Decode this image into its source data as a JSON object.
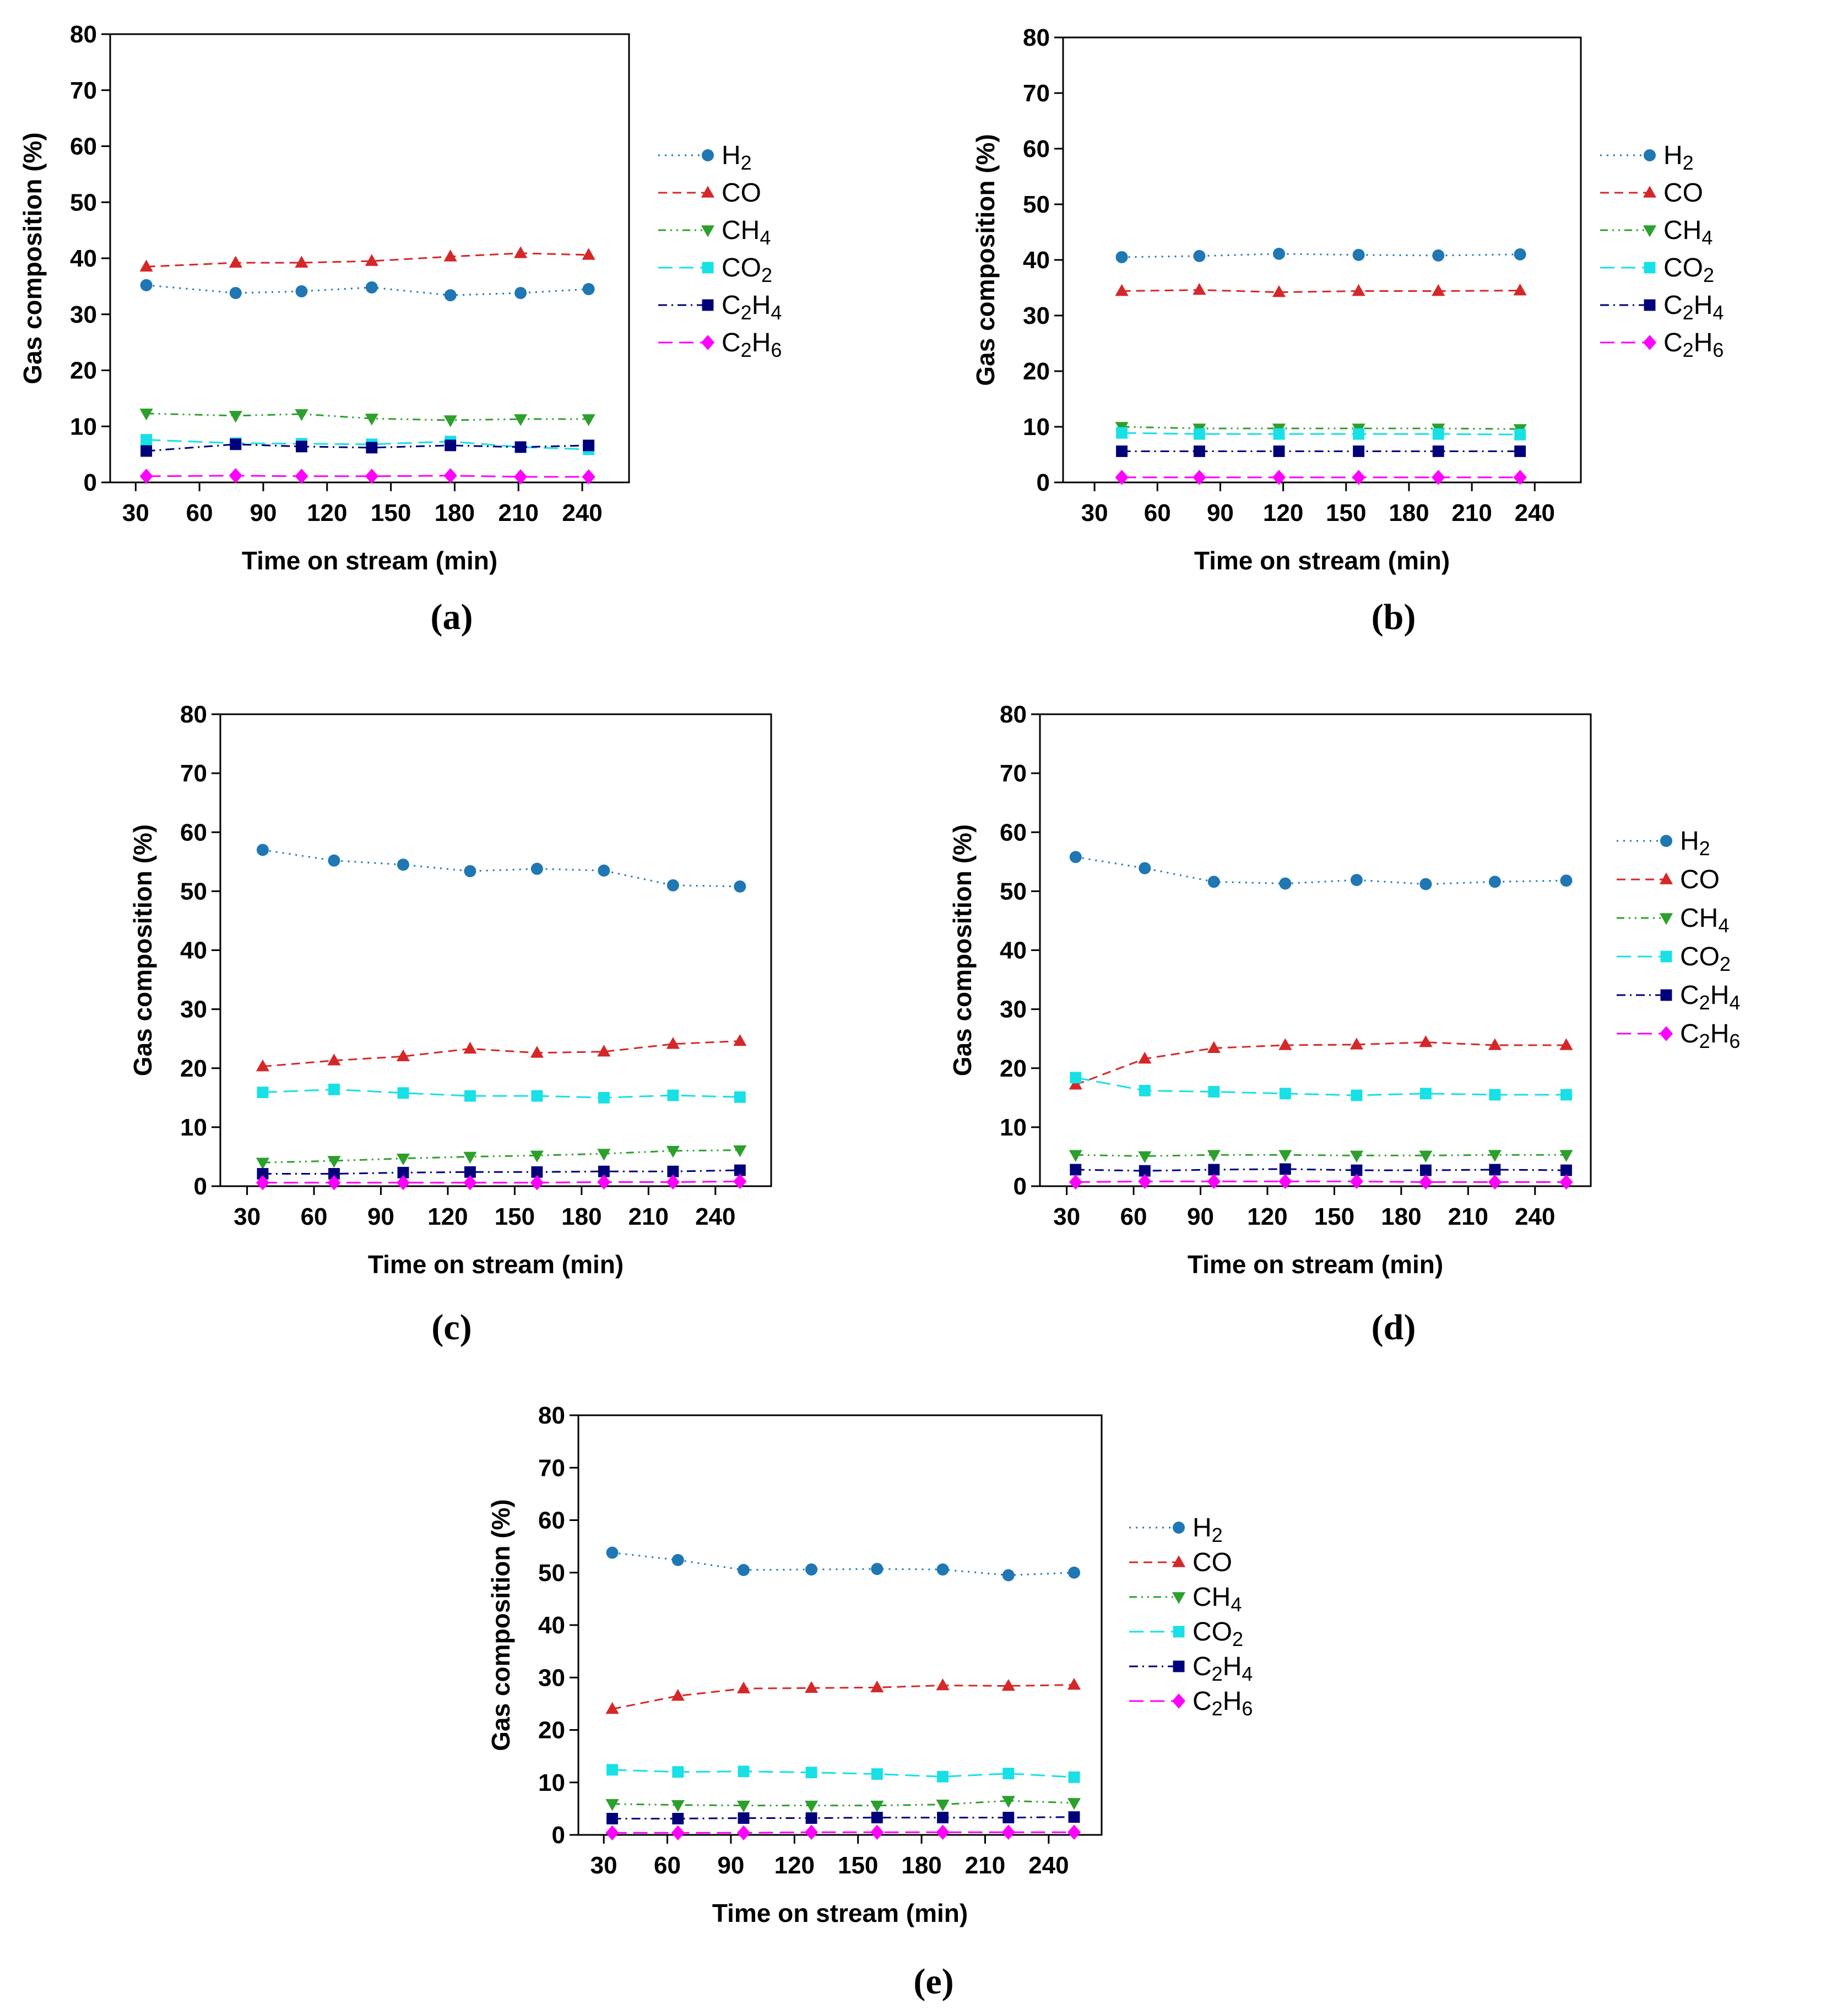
{
  "figure": {
    "ylabel": "Gas composition (%)",
    "xlabel": "Time on stream (min)"
  },
  "series_styles": [
    {
      "key": "H2",
      "base": "H",
      "sub": "2",
      "color": "#1f77b4",
      "marker": "circle",
      "dash": "dot"
    },
    {
      "key": "CO",
      "base": "CO",
      "sub": "",
      "color": "#d62728",
      "marker": "triangle",
      "dash": "dash"
    },
    {
      "key": "CH4",
      "base": "CH",
      "sub": "4",
      "color": "#2ca02c",
      "marker": "triangle-down",
      "dash": "dashdotdot"
    },
    {
      "key": "CO2",
      "base": "CO",
      "sub": "2",
      "color": "#17e0e6",
      "marker": "square",
      "dash": "longdash"
    },
    {
      "key": "C2H4",
      "base": "C",
      "sub": "2",
      "base2": "H",
      "sub2": "4",
      "color": "#00007a",
      "marker": "square",
      "dash": "dashdot"
    },
    {
      "key": "C2H6",
      "base": "C",
      "sub": "2",
      "base2": "H",
      "sub2": "6",
      "color": "#ff00ff",
      "marker": "diamond",
      "dash": "longdash"
    }
  ],
  "chart_data": [
    {
      "panel": "(a)",
      "type": "line",
      "xlabel": "Time on stream (min)",
      "ylabel": "Gas composition (%)",
      "xticks": [
        30,
        60,
        90,
        120,
        150,
        180,
        210,
        240
      ],
      "yticks": [
        0,
        10,
        20,
        30,
        40,
        50,
        60,
        70,
        80
      ],
      "xlim": [
        18,
        262
      ],
      "ylim": [
        0,
        80
      ],
      "legend_position": "right",
      "x": [
        35,
        77,
        108,
        141,
        178,
        211,
        243
      ],
      "series": [
        {
          "name": "H2",
          "values": [
            35.2,
            33.8,
            34.1,
            34.8,
            33.4,
            33.8,
            34.5
          ]
        },
        {
          "name": "CO",
          "values": [
            38.5,
            39.2,
            39.2,
            39.5,
            40.3,
            40.9,
            40.6
          ]
        },
        {
          "name": "CH4",
          "values": [
            12.3,
            11.9,
            12.2,
            11.4,
            11.1,
            11.3,
            11.3
          ]
        },
        {
          "name": "CO2",
          "values": [
            7.6,
            7.0,
            6.9,
            6.8,
            7.3,
            6.3,
            5.9
          ]
        },
        {
          "name": "C2H4",
          "values": [
            5.6,
            6.8,
            6.4,
            6.2,
            6.6,
            6.3,
            6.6
          ]
        },
        {
          "name": "C2H6",
          "values": [
            1.1,
            1.2,
            1.1,
            1.1,
            1.2,
            1.0,
            1.0
          ]
        }
      ]
    },
    {
      "panel": "(b)",
      "type": "line",
      "xlabel": "Time on stream (min)",
      "ylabel": "Gas composition (%)",
      "xticks": [
        30,
        60,
        90,
        120,
        150,
        180,
        210,
        240
      ],
      "yticks": [
        0,
        10,
        20,
        30,
        40,
        50,
        60,
        70,
        80
      ],
      "xlim": [
        15,
        262
      ],
      "ylim": [
        0,
        80
      ],
      "legend_position": "right",
      "x": [
        43,
        80,
        118,
        156,
        194,
        233
      ],
      "series": [
        {
          "name": "H2",
          "values": [
            40.5,
            40.7,
            41.1,
            40.9,
            40.8,
            41.0
          ]
        },
        {
          "name": "CO",
          "values": [
            34.4,
            34.6,
            34.2,
            34.4,
            34.4,
            34.5
          ]
        },
        {
          "name": "CH4",
          "values": [
            10.0,
            9.7,
            9.7,
            9.7,
            9.7,
            9.6
          ]
        },
        {
          "name": "CO2",
          "values": [
            8.9,
            8.7,
            8.7,
            8.7,
            8.7,
            8.6
          ]
        },
        {
          "name": "C2H4",
          "values": [
            5.6,
            5.6,
            5.6,
            5.6,
            5.6,
            5.6
          ]
        },
        {
          "name": "C2H6",
          "values": [
            0.9,
            0.9,
            0.9,
            0.9,
            0.9,
            0.9
          ]
        }
      ]
    },
    {
      "panel": "(c)",
      "type": "line",
      "xlabel": "Time on stream (min)",
      "ylabel": "Gas composition (%)",
      "xticks": [
        30,
        60,
        90,
        120,
        150,
        180,
        210,
        240
      ],
      "yticks": [
        0,
        10,
        20,
        30,
        40,
        50,
        60,
        70,
        80
      ],
      "xlim": [
        18,
        265
      ],
      "ylim": [
        0,
        80
      ],
      "legend_position": "none",
      "x": [
        37,
        69,
        100,
        130,
        160,
        190,
        221,
        251
      ],
      "series": [
        {
          "name": "H2",
          "values": [
            57.0,
            55.2,
            54.5,
            53.4,
            53.8,
            53.5,
            51.0,
            50.8
          ]
        },
        {
          "name": "CO",
          "values": [
            20.3,
            21.3,
            22.0,
            23.3,
            22.6,
            22.8,
            24.1,
            24.6
          ]
        },
        {
          "name": "CH4",
          "values": [
            4.0,
            4.3,
            4.7,
            5.0,
            5.2,
            5.5,
            6.0,
            6.1
          ]
        },
        {
          "name": "CO2",
          "values": [
            15.9,
            16.4,
            15.8,
            15.3,
            15.3,
            15.0,
            15.4,
            15.1
          ]
        },
        {
          "name": "C2H4",
          "values": [
            2.1,
            2.1,
            2.3,
            2.4,
            2.4,
            2.5,
            2.5,
            2.7
          ]
        },
        {
          "name": "C2H6",
          "values": [
            0.6,
            0.6,
            0.6,
            0.6,
            0.6,
            0.7,
            0.7,
            0.8
          ]
        }
      ]
    },
    {
      "panel": "(d)",
      "type": "line",
      "xlabel": "Time on stream (min)",
      "ylabel": "Gas composition (%)",
      "xticks": [
        30,
        60,
        90,
        120,
        150,
        180,
        210,
        240
      ],
      "yticks": [
        0,
        10,
        20,
        30,
        40,
        50,
        60,
        70,
        80
      ],
      "xlim": [
        18,
        265
      ],
      "ylim": [
        0,
        80
      ],
      "legend_position": "right",
      "x": [
        34,
        65,
        96,
        128,
        160,
        191,
        222,
        254
      ],
      "series": [
        {
          "name": "H2",
          "values": [
            55.8,
            53.9,
            51.6,
            51.3,
            51.9,
            51.2,
            51.6,
            51.8
          ]
        },
        {
          "name": "CO",
          "values": [
            17.2,
            21.6,
            23.4,
            23.9,
            24.0,
            24.4,
            23.9,
            23.9
          ]
        },
        {
          "name": "CH4",
          "values": [
            5.3,
            5.1,
            5.3,
            5.3,
            5.2,
            5.2,
            5.3,
            5.3
          ]
        },
        {
          "name": "CO2",
          "values": [
            18.4,
            16.2,
            16.0,
            15.7,
            15.4,
            15.7,
            15.5,
            15.5
          ]
        },
        {
          "name": "C2H4",
          "values": [
            2.8,
            2.6,
            2.8,
            2.9,
            2.7,
            2.7,
            2.8,
            2.7
          ]
        },
        {
          "name": "C2H6",
          "values": [
            0.7,
            0.8,
            0.8,
            0.8,
            0.8,
            0.7,
            0.7,
            0.7
          ]
        }
      ]
    },
    {
      "panel": "(e)",
      "type": "line",
      "xlabel": "Time on stream (min)",
      "ylabel": "Gas composition (%)",
      "xticks": [
        30,
        60,
        90,
        120,
        150,
        180,
        210,
        240
      ],
      "yticks": [
        0,
        10,
        20,
        30,
        40,
        50,
        60,
        70,
        80
      ],
      "xlim": [
        18,
        265
      ],
      "ylim": [
        0,
        80
      ],
      "legend_position": "right",
      "x": [
        34,
        65,
        96,
        128,
        159,
        190,
        221,
        252
      ],
      "series": [
        {
          "name": "H2",
          "values": [
            53.8,
            52.4,
            50.5,
            50.6,
            50.7,
            50.6,
            49.5,
            50.0
          ]
        },
        {
          "name": "CO",
          "values": [
            24.0,
            26.5,
            27.9,
            28.0,
            28.1,
            28.5,
            28.4,
            28.6
          ]
        },
        {
          "name": "CH4",
          "values": [
            5.9,
            5.7,
            5.6,
            5.6,
            5.6,
            5.8,
            6.5,
            6.1
          ]
        },
        {
          "name": "CO2",
          "values": [
            12.4,
            12.0,
            12.1,
            11.9,
            11.6,
            11.1,
            11.7,
            11.0
          ]
        },
        {
          "name": "C2H4",
          "values": [
            3.1,
            3.1,
            3.2,
            3.2,
            3.3,
            3.3,
            3.3,
            3.4
          ]
        },
        {
          "name": "C2H6",
          "values": [
            0.4,
            0.4,
            0.4,
            0.5,
            0.5,
            0.5,
            0.5,
            0.5
          ]
        }
      ]
    }
  ]
}
